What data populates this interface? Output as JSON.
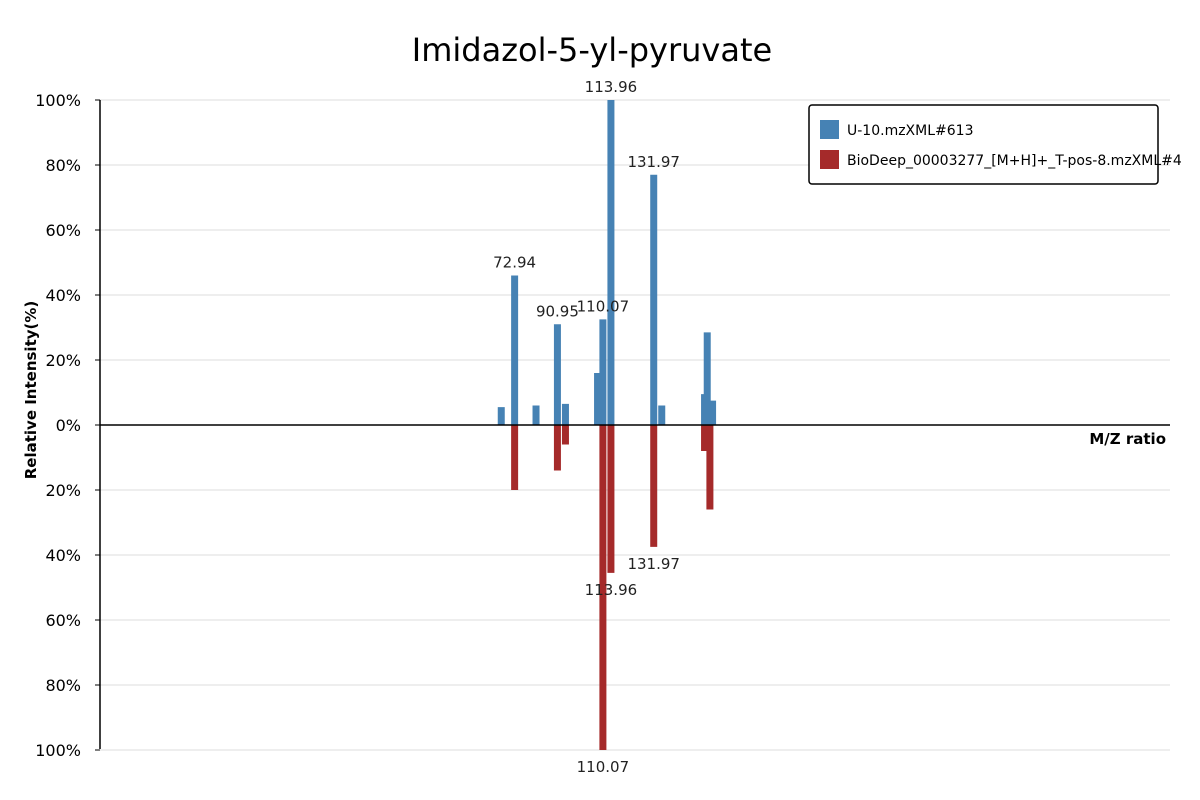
{
  "chart_data": {
    "type": "bar",
    "title": "Imidazol-5-yl-pyruvate",
    "xlabel": "M/Z ratio",
    "ylabel": "Relative Intensity(%)",
    "ylim": [
      -100,
      100
    ],
    "xlim": [
      0,
      200
    ],
    "y_ticks": [
      {
        "value": 100,
        "label": "100%"
      },
      {
        "value": 80,
        "label": "80%"
      },
      {
        "value": 60,
        "label": "60%"
      },
      {
        "value": 40,
        "label": "40%"
      },
      {
        "value": 20,
        "label": "20%"
      },
      {
        "value": 0,
        "label": "0%"
      },
      {
        "value": -20,
        "label": "20%"
      },
      {
        "value": -40,
        "label": "40%"
      },
      {
        "value": -60,
        "label": "60%"
      },
      {
        "value": -80,
        "label": "80%"
      },
      {
        "value": -100,
        "label": "100%"
      }
    ],
    "grid": true,
    "legend_position": "top-right",
    "series": [
      {
        "name": "U-10.mzXML#613",
        "color": "#4682b4",
        "direction": "up",
        "peaks": [
          {
            "mz": 75.0,
            "intensity": 5.5
          },
          {
            "mz": 77.5,
            "intensity": 46
          },
          {
            "mz": 81.5,
            "intensity": 6
          },
          {
            "mz": 85.5,
            "intensity": 31
          },
          {
            "mz": 87.0,
            "intensity": 6.5
          },
          {
            "mz": 93.0,
            "intensity": 16
          },
          {
            "mz": 94.0,
            "intensity": 32.5
          },
          {
            "mz": 95.5,
            "intensity": 100
          },
          {
            "mz": 103.5,
            "intensity": 77
          },
          {
            "mz": 105.0,
            "intensity": 6
          },
          {
            "mz": 113.0,
            "intensity": 9.5
          },
          {
            "mz": 113.5,
            "intensity": 28.5
          },
          {
            "mz": 114.5,
            "intensity": 7.5
          }
        ],
        "labels": [
          {
            "text": "72.94",
            "mz": 77.5,
            "intensity": 46
          },
          {
            "text": "90.95",
            "mz": 85.5,
            "intensity": 31
          },
          {
            "text": "110.07",
            "mz": 94.0,
            "intensity": 32.5
          },
          {
            "text": "113.96",
            "mz": 95.5,
            "intensity": 100
          },
          {
            "text": "131.97",
            "mz": 103.5,
            "intensity": 77
          }
        ]
      },
      {
        "name": "BioDeep_00003277_[M+H]+_T-pos-8.mzXML#4",
        "color": "#a52a2a",
        "direction": "down",
        "peaks": [
          {
            "mz": 77.5,
            "intensity": 20
          },
          {
            "mz": 85.5,
            "intensity": 14
          },
          {
            "mz": 87.0,
            "intensity": 6
          },
          {
            "mz": 94.0,
            "intensity": 100
          },
          {
            "mz": 95.5,
            "intensity": 45.5
          },
          {
            "mz": 103.5,
            "intensity": 37.5
          },
          {
            "mz": 113.0,
            "intensity": 8
          },
          {
            "mz": 114.0,
            "intensity": 26
          }
        ],
        "labels": [
          {
            "text": "113.96",
            "mz": 95.5,
            "intensity": 45.5
          },
          {
            "text": "131.97",
            "mz": 103.5,
            "intensity": 37.5
          },
          {
            "text": "110.07",
            "mz": 94.0,
            "intensity": 100
          }
        ]
      }
    ]
  }
}
